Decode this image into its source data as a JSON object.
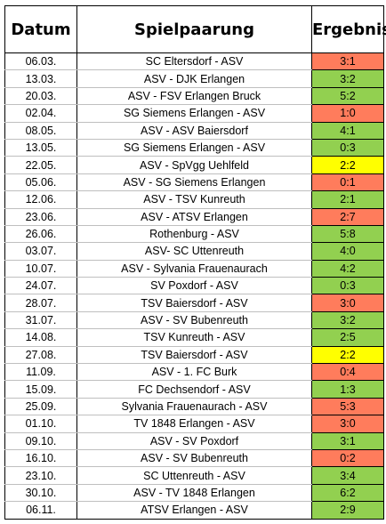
{
  "headers": {
    "date": "Datum",
    "match": "Spielpaarung",
    "result": "Ergebnis"
  },
  "colors": {
    "win": "#92d050",
    "loss": "#ff7c5c",
    "draw": "#ffff00"
  },
  "rows": [
    {
      "date": "06.03.",
      "match": "SC Eltersdorf - ASV",
      "result": "3:1",
      "outcome": "loss"
    },
    {
      "date": "13.03.",
      "match": "ASV - DJK Erlangen",
      "result": "3:2",
      "outcome": "win"
    },
    {
      "date": "20.03.",
      "match": "ASV - FSV Erlangen Bruck",
      "result": "5:2",
      "outcome": "win"
    },
    {
      "date": "02.04.",
      "match": "SG Siemens Erlangen - ASV",
      "result": "1:0",
      "outcome": "loss"
    },
    {
      "date": "08.05.",
      "match": "ASV - ASV Baiersdorf",
      "result": "4:1",
      "outcome": "win"
    },
    {
      "date": "13.05.",
      "match": "SG Siemens Erlangen - ASV",
      "result": "0:3",
      "outcome": "win"
    },
    {
      "date": "22.05.",
      "match": "ASV - SpVgg Uehlfeld",
      "result": "2:2",
      "outcome": "draw"
    },
    {
      "date": "05.06.",
      "match": "ASV - SG Siemens Erlangen",
      "result": "0:1",
      "outcome": "loss"
    },
    {
      "date": "12.06.",
      "match": "ASV - TSV Kunreuth",
      "result": "2:1",
      "outcome": "win"
    },
    {
      "date": "23.06.",
      "match": "ASV - ATSV Erlangen",
      "result": "2:7",
      "outcome": "loss"
    },
    {
      "date": "26.06.",
      "match": "Rothenburg - ASV",
      "result": "5:8",
      "outcome": "win"
    },
    {
      "date": "03.07.",
      "match": "ASV- SC Uttenreuth",
      "result": "4:0",
      "outcome": "win"
    },
    {
      "date": "10.07.",
      "match": "ASV - Sylvania Frauenaurach",
      "result": "4:2",
      "outcome": "win"
    },
    {
      "date": "24.07.",
      "match": "SV Poxdorf - ASV",
      "result": "0:3",
      "outcome": "win"
    },
    {
      "date": "28.07.",
      "match": "TSV Baiersdorf - ASV",
      "result": "3:0",
      "outcome": "loss"
    },
    {
      "date": "31.07.",
      "match": "ASV - SV Bubenreuth",
      "result": "3:2",
      "outcome": "win"
    },
    {
      "date": "14.08.",
      "match": "TSV Kunreuth - ASV",
      "result": "2:5",
      "outcome": "win"
    },
    {
      "date": "27.08.",
      "match": "TSV Baiersdorf - ASV",
      "result": "2:2",
      "outcome": "draw"
    },
    {
      "date": "11.09.",
      "match": "ASV - 1. FC Burk",
      "result": "0:4",
      "outcome": "loss"
    },
    {
      "date": "15.09.",
      "match": "FC Dechsendorf - ASV",
      "result": "1:3",
      "outcome": "win"
    },
    {
      "date": "25.09.",
      "match": "Sylvania Frauenaurach - ASV",
      "result": "5:3",
      "outcome": "loss"
    },
    {
      "date": "01.10.",
      "match": "TV 1848 Erlangen - ASV",
      "result": "3:0",
      "outcome": "loss"
    },
    {
      "date": "09.10.",
      "match": "ASV - SV Poxdorf",
      "result": "3:1",
      "outcome": "win"
    },
    {
      "date": "16.10.",
      "match": "ASV - SV Bubenreuth",
      "result": "0:2",
      "outcome": "loss"
    },
    {
      "date": "23.10.",
      "match": "SC Uttenreuth - ASV",
      "result": "3:4",
      "outcome": "win"
    },
    {
      "date": "30.10.",
      "match": "ASV - TV 1848 Erlangen",
      "result": "6:2",
      "outcome": "win"
    },
    {
      "date": "06.11.",
      "match": "ATSV Erlangen - ASV",
      "result": "2:9",
      "outcome": "win"
    }
  ]
}
